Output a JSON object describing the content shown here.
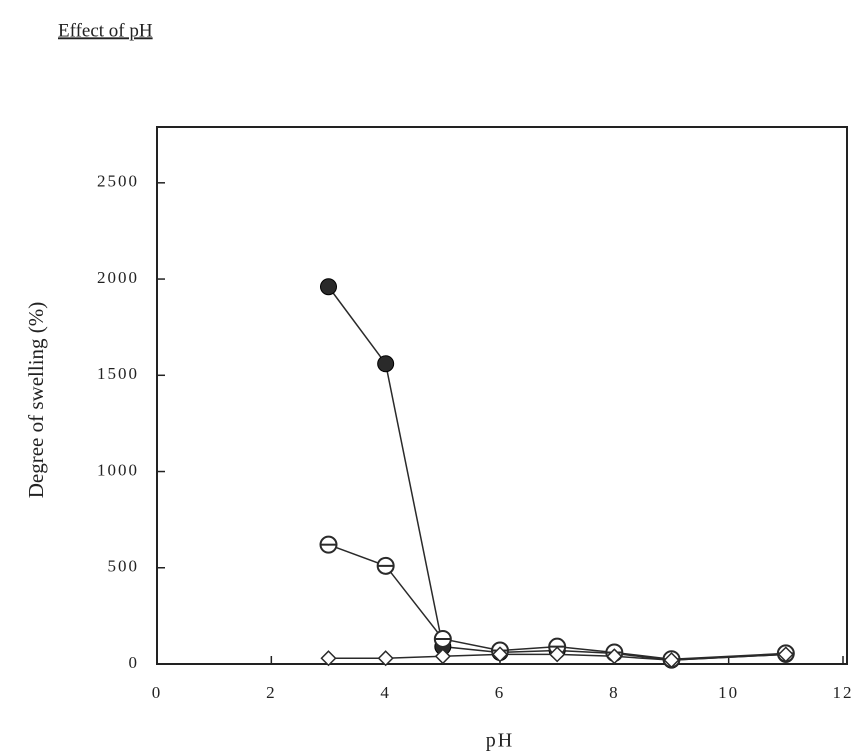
{
  "chart_data": {
    "type": "line",
    "title": "Effect of pH",
    "x_label": "pH",
    "y_label": "Degree of swelling (%)",
    "x": [
      3,
      4,
      5,
      6,
      7,
      8,
      9,
      11
    ],
    "series": [
      {
        "color": "#2a2a2a",
        "marker": "filled-circle",
        "values": [
          1960,
          1560,
          90,
          60,
          70,
          55,
          20,
          50
        ]
      },
      {
        "color": "#2a2a2a",
        "marker": "open-circle",
        "values": [
          620,
          510,
          130,
          70,
          90,
          60,
          25,
          55
        ]
      },
      {
        "color": "#2a2a2a",
        "marker": "diamond",
        "values": [
          30,
          30,
          40,
          50,
          50,
          40,
          20,
          50
        ]
      }
    ],
    "xlim": [
      0,
      12
    ],
    "ylim": [
      0,
      2790
    ],
    "xticks": [
      0,
      2,
      4,
      6,
      8,
      10,
      12
    ],
    "yticks": [
      0,
      500,
      1000,
      1500,
      2000,
      2500
    ],
    "grid": false
  }
}
